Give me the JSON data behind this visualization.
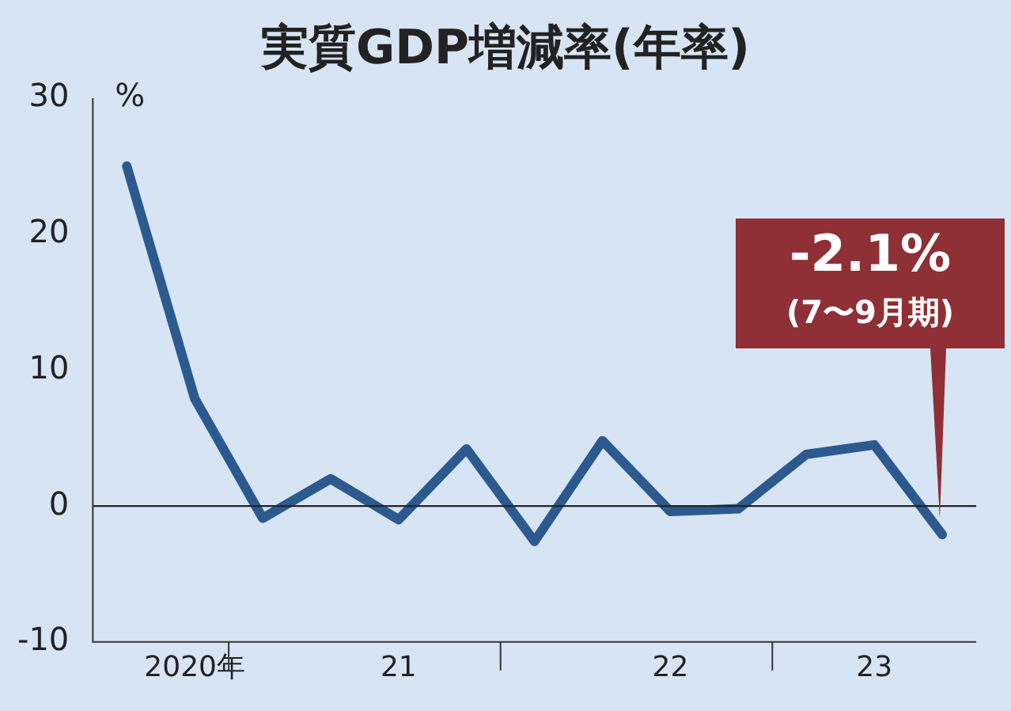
{
  "chart_data": {
    "type": "line",
    "title": "実質GDP増減率(年率)",
    "ylabel": "%",
    "categories": [
      null,
      "2020年",
      null,
      null,
      "21",
      null,
      null,
      null,
      "22",
      null,
      null,
      "23",
      null
    ],
    "series": [
      {
        "color": "#2d5a8e",
        "values": [
          25,
          7.9,
          -0.9,
          2,
          -1,
          4.2,
          -2.6,
          4.8,
          -0.4,
          -0.2,
          3.8,
          4.5,
          -2.1
        ]
      }
    ],
    "ylim": [
      -10,
      30
    ],
    "yticks": [
      -10,
      0,
      10,
      20,
      30
    ],
    "grid": false,
    "legend": false,
    "marker": "none",
    "line_style": "solid",
    "ref_lines": [
      {
        "axis": "y",
        "value": 0,
        "color": "#222222"
      }
    ],
    "annotations": [
      "-2.1%",
      "(7〜9月期)"
    ]
  }
}
